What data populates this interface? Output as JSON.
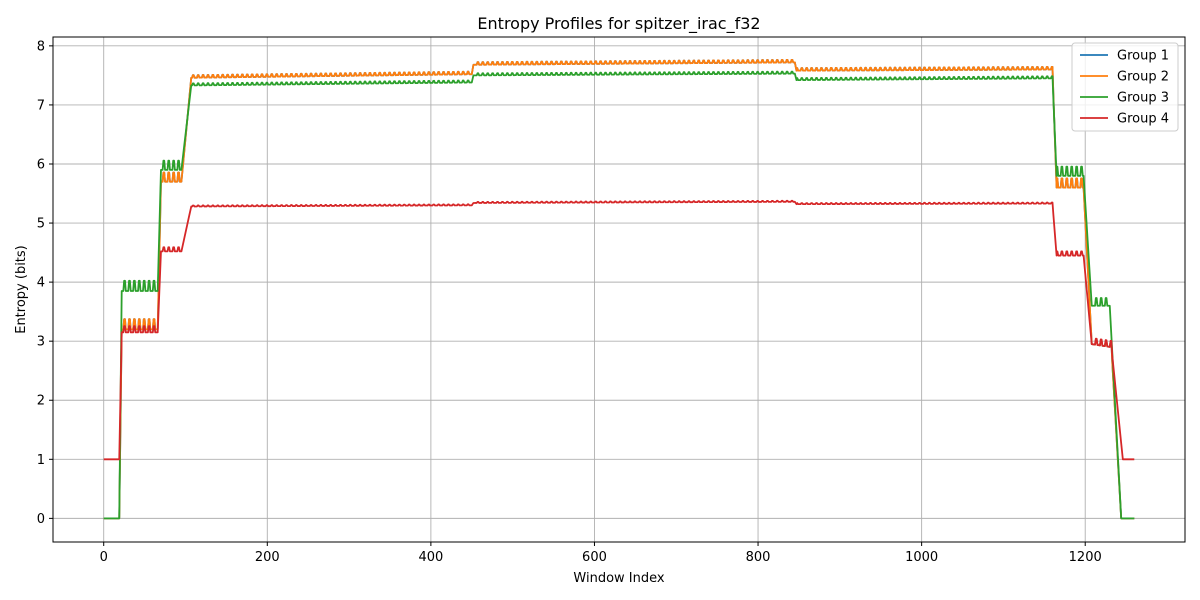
{
  "chart_data": {
    "type": "line",
    "title": "Entropy Profiles for spitzer_irac_f32",
    "xlabel": "Window Index",
    "ylabel": "Entropy (bits)",
    "xlim": [
      -62,
      1322
    ],
    "ylim": [
      -0.4,
      8.15
    ],
    "xticks": [
      0,
      200,
      400,
      600,
      800,
      1000,
      1200
    ],
    "yticks": [
      0,
      1,
      2,
      3,
      4,
      5,
      6,
      7,
      8
    ],
    "grid": true,
    "legend_position": "top-right",
    "series": [
      {
        "name": "Group 1",
        "color": "#1f77b4",
        "segments": [
          [
            0,
            19,
            0.0,
            0.0,
            0.0
          ],
          [
            19,
            22,
            0.0,
            3.2,
            0.0
          ],
          [
            22,
            66,
            3.2,
            3.2,
            0.2
          ],
          [
            66,
            70,
            3.2,
            5.7,
            0.0
          ],
          [
            70,
            95,
            5.7,
            5.7,
            0.18
          ],
          [
            95,
            107,
            5.7,
            7.46,
            0.0
          ],
          [
            107,
            450,
            7.46,
            7.52,
            0.05
          ],
          [
            450,
            452,
            7.52,
            7.68,
            0.0
          ],
          [
            452,
            845,
            7.68,
            7.72,
            0.05
          ],
          [
            845,
            847,
            7.72,
            7.58,
            0.0
          ],
          [
            847,
            1160,
            7.58,
            7.6,
            0.05
          ],
          [
            1160,
            1165,
            7.6,
            5.6,
            0.0
          ],
          [
            1165,
            1198,
            5.6,
            5.6,
            0.18
          ],
          [
            1198,
            1208,
            5.6,
            2.95,
            0.0
          ],
          [
            1208,
            1232,
            2.95,
            2.9,
            0.1
          ],
          [
            1232,
            1244,
            2.9,
            0.0,
            0.0
          ],
          [
            1244,
            1260,
            0.0,
            0.0,
            0.0
          ]
        ]
      },
      {
        "name": "Group 2",
        "color": "#ff7f0e",
        "segments": [
          [
            0,
            19,
            0.0,
            0.0,
            0.0
          ],
          [
            19,
            22,
            0.0,
            3.2,
            0.0
          ],
          [
            22,
            66,
            3.2,
            3.2,
            0.2
          ],
          [
            66,
            70,
            3.2,
            5.7,
            0.0
          ],
          [
            70,
            95,
            5.7,
            5.7,
            0.18
          ],
          [
            95,
            107,
            5.7,
            7.46,
            0.0
          ],
          [
            107,
            450,
            7.46,
            7.52,
            0.05
          ],
          [
            450,
            452,
            7.52,
            7.68,
            0.0
          ],
          [
            452,
            845,
            7.68,
            7.72,
            0.05
          ],
          [
            845,
            847,
            7.72,
            7.58,
            0.0
          ],
          [
            847,
            1160,
            7.58,
            7.6,
            0.05
          ],
          [
            1160,
            1165,
            7.6,
            5.6,
            0.0
          ],
          [
            1165,
            1198,
            5.6,
            5.6,
            0.18
          ],
          [
            1198,
            1208,
            5.6,
            2.95,
            0.0
          ],
          [
            1208,
            1232,
            2.95,
            2.9,
            0.1
          ],
          [
            1232,
            1244,
            2.9,
            0.0,
            0.0
          ],
          [
            1244,
            1260,
            0.0,
            0.0,
            0.0
          ]
        ]
      },
      {
        "name": "Group 3",
        "color": "#2ca02c",
        "segments": [
          [
            0,
            19,
            0.0,
            0.0,
            0.0
          ],
          [
            19,
            22,
            0.0,
            3.85,
            0.0
          ],
          [
            22,
            66,
            3.85,
            3.85,
            0.2
          ],
          [
            66,
            70,
            3.85,
            5.9,
            0.0
          ],
          [
            70,
            95,
            5.9,
            5.9,
            0.18
          ],
          [
            95,
            107,
            5.9,
            7.33,
            0.0
          ],
          [
            107,
            450,
            7.33,
            7.38,
            0.04
          ],
          [
            450,
            452,
            7.38,
            7.5,
            0.0
          ],
          [
            452,
            845,
            7.5,
            7.53,
            0.04
          ],
          [
            845,
            847,
            7.53,
            7.42,
            0.0
          ],
          [
            847,
            1160,
            7.42,
            7.45,
            0.04
          ],
          [
            1160,
            1165,
            7.45,
            5.8,
            0.0
          ],
          [
            1165,
            1198,
            5.8,
            5.8,
            0.18
          ],
          [
            1198,
            1208,
            5.8,
            3.6,
            0.0
          ],
          [
            1208,
            1230,
            3.6,
            3.6,
            0.15
          ],
          [
            1230,
            1244,
            3.6,
            0.0,
            0.0
          ],
          [
            1244,
            1260,
            0.0,
            0.0,
            0.0
          ]
        ]
      },
      {
        "name": "Group 4",
        "color": "#d62728",
        "segments": [
          [
            0,
            19,
            1.0,
            1.0,
            0.0
          ],
          [
            19,
            22,
            1.0,
            3.15,
            0.0
          ],
          [
            22,
            66,
            3.15,
            3.15,
            0.12
          ],
          [
            66,
            70,
            3.15,
            4.52,
            0.0
          ],
          [
            70,
            95,
            4.52,
            4.52,
            0.08
          ],
          [
            95,
            107,
            4.52,
            5.28,
            0.0
          ],
          [
            107,
            450,
            5.28,
            5.3,
            0.02
          ],
          [
            450,
            452,
            5.3,
            5.34,
            0.0
          ],
          [
            452,
            845,
            5.34,
            5.36,
            0.02
          ],
          [
            845,
            847,
            5.36,
            5.32,
            0.0
          ],
          [
            847,
            1160,
            5.32,
            5.33,
            0.02
          ],
          [
            1160,
            1165,
            5.33,
            4.45,
            0.0
          ],
          [
            1165,
            1198,
            4.45,
            4.45,
            0.08
          ],
          [
            1198,
            1208,
            4.45,
            2.95,
            0.0
          ],
          [
            1208,
            1232,
            2.95,
            2.9,
            0.12
          ],
          [
            1232,
            1246,
            2.9,
            1.0,
            0.0
          ],
          [
            1246,
            1260,
            1.0,
            1.0,
            0.0
          ]
        ]
      }
    ]
  }
}
